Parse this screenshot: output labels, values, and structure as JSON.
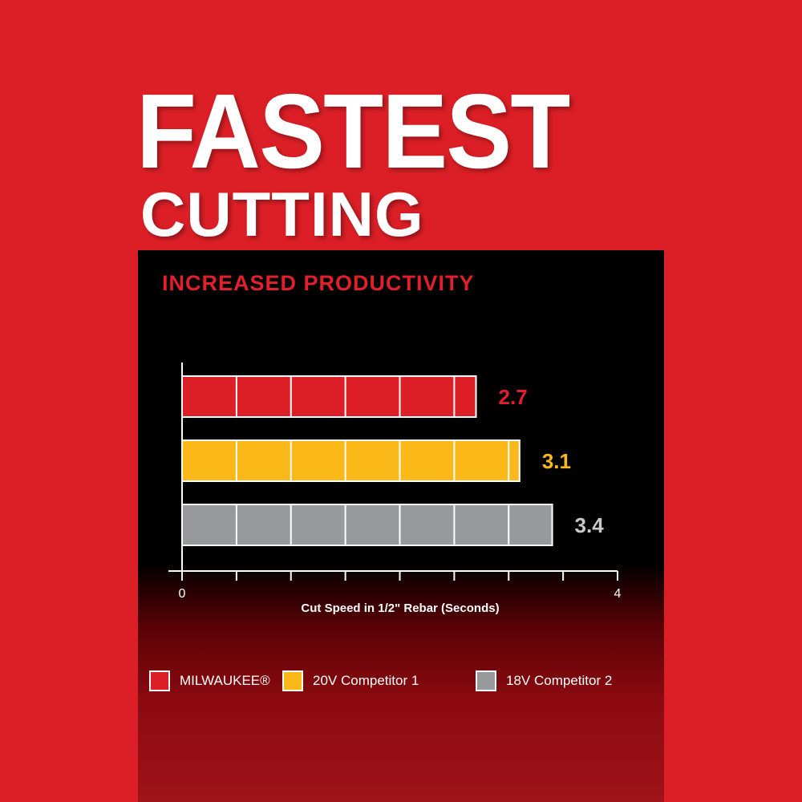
{
  "header": {
    "title_line1": "FASTEST",
    "title_line2": "CUTTING"
  },
  "chart_data": {
    "type": "bar",
    "orientation": "horizontal",
    "title": "INCREASED PRODUCTIVITY",
    "xlabel": "Cut Speed in 1/2\" Rebar (Seconds)",
    "xlim": [
      0,
      4
    ],
    "tick_labels": [
      "0",
      "4"
    ],
    "tick_step": 0.5,
    "categories": [
      "MILWAUKEE®",
      "20V Competitor 1",
      "18V Competitor 2"
    ],
    "values": [
      2.7,
      3.1,
      3.4
    ],
    "data_labels": [
      "2.7",
      "3.1",
      "3.4"
    ],
    "colors": [
      "#dc1f26",
      "#fbb919",
      "#98999b"
    ],
    "label_colors": [
      "#e0202a",
      "#fbb919",
      "#c8c8c8"
    ],
    "legend_position": "bottom"
  }
}
